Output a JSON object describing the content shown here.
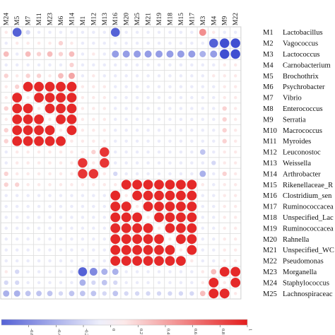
{
  "chart_data": {
    "type": "heatmap",
    "title": "",
    "columns": [
      "M24",
      "M5",
      "M7",
      "M11",
      "M23",
      "M6",
      "M14",
      "M1",
      "M12",
      "M13",
      "M16",
      "M20",
      "M25",
      "M21",
      "M19",
      "M18",
      "M15",
      "M17",
      "M3",
      "M4",
      "M9",
      "M22"
    ],
    "rows": [
      {
        "id": "M1",
        "label": "Lactobacillus"
      },
      {
        "id": "M2",
        "label": "Vagococcus"
      },
      {
        "id": "M3",
        "label": "Lactococcus"
      },
      {
        "id": "M4",
        "label": "Carnobacterium"
      },
      {
        "id": "M5",
        "label": "Brochothrix"
      },
      {
        "id": "M6",
        "label": "Psychrobacter"
      },
      {
        "id": "M7",
        "label": "Vibrio"
      },
      {
        "id": "M8",
        "label": "Enterococcus"
      },
      {
        "id": "M9",
        "label": "Serratia"
      },
      {
        "id": "M10",
        "label": "Macrococcus"
      },
      {
        "id": "M11",
        "label": "Myroides"
      },
      {
        "id": "M12",
        "label": "Leuconostoc"
      },
      {
        "id": "M13",
        "label": "Weissella"
      },
      {
        "id": "M14",
        "label": "Arthrobacter"
      },
      {
        "id": "M15",
        "label": "Rikenellaceae_R"
      },
      {
        "id": "M16",
        "label": "Clostridium_sen"
      },
      {
        "id": "M17",
        "label": "Ruminococcacea"
      },
      {
        "id": "M18",
        "label": "Unspecified_Lac"
      },
      {
        "id": "M19",
        "label": "Ruminococcacea"
      },
      {
        "id": "M20",
        "label": "Rahnella"
      },
      {
        "id": "M21",
        "label": "Unspecified_WC"
      },
      {
        "id": "M22",
        "label": "Pseudomonas"
      },
      {
        "id": "M23",
        "label": "Morganella"
      },
      {
        "id": "M24",
        "label": "Staphylococcus"
      },
      {
        "id": "M25",
        "label": "Lachnospiraceac"
      }
    ],
    "values": [
      [
        0.1,
        -0.8,
        -0.2,
        -0.1,
        -0.1,
        -0.1,
        -0.1,
        -0.1,
        -0.1,
        -0.1,
        -0.8,
        -0.1,
        -0.1,
        -0.1,
        -0.1,
        -0.1,
        -0.1,
        -0.1,
        0.5,
        0.1,
        -0.1,
        -0.1
      ],
      [
        -0.1,
        0.1,
        0.1,
        0.1,
        0.1,
        0.2,
        0.1,
        -0.1,
        -0.1,
        -0.1,
        -0.1,
        -0.1,
        -0.1,
        -0.1,
        -0.1,
        -0.1,
        -0.1,
        -0.1,
        -0.1,
        -0.8,
        -0.9,
        -0.9
      ],
      [
        0.3,
        -0.1,
        0.3,
        0.2,
        0.3,
        0.2,
        0.3,
        -0.1,
        0.1,
        -0.1,
        -0.5,
        -0.5,
        -0.5,
        -0.5,
        -0.5,
        -0.5,
        -0.5,
        -0.5,
        -0.4,
        -0.5,
        -0.9,
        -0.9
      ],
      [
        -0.1,
        -0.1,
        -0.1,
        -0.1,
        -0.1,
        -0.1,
        0.2,
        -0.1,
        -0.1,
        -0.1,
        -0.1,
        -0.1,
        -0.1,
        -0.1,
        -0.1,
        -0.1,
        -0.1,
        -0.1,
        -0.1,
        -0.1,
        0.1,
        0.1
      ],
      [
        0.2,
        0.1,
        0.2,
        0.2,
        0.1,
        0.3,
        0.4,
        -0.1,
        0.1,
        -0.1,
        -0.1,
        -0.1,
        -0.1,
        -0.1,
        -0.1,
        -0.1,
        -0.1,
        -0.1,
        -0.1,
        0.1,
        0.1,
        0.1
      ],
      [
        0.1,
        0.2,
        0.95,
        0.95,
        0.95,
        0.95,
        0.95,
        0.1,
        0.1,
        0.1,
        -0.1,
        -0.1,
        -0.1,
        -0.1,
        -0.1,
        -0.1,
        -0.1,
        -0.1,
        -0.1,
        -0.1,
        0.1,
        0.1
      ],
      [
        0.1,
        0.95,
        0.1,
        0.95,
        0.95,
        0.95,
        0.95,
        0.1,
        0.1,
        0.1,
        -0.1,
        -0.1,
        -0.1,
        -0.1,
        -0.1,
        -0.1,
        -0.1,
        -0.1,
        -0.1,
        -0.1,
        0.1,
        0.1
      ],
      [
        0.2,
        0.95,
        0.95,
        0.1,
        0.95,
        0.95,
        0.95,
        0.1,
        0.1,
        0.1,
        -0.1,
        -0.1,
        -0.1,
        -0.1,
        -0.1,
        -0.1,
        -0.1,
        -0.1,
        -0.1,
        -0.1,
        0.2,
        0.1
      ],
      [
        0.1,
        0.95,
        0.95,
        0.95,
        0.1,
        0.95,
        0.95,
        0.1,
        0.1,
        0.1,
        -0.1,
        -0.1,
        -0.1,
        -0.1,
        -0.1,
        -0.1,
        -0.1,
        -0.1,
        -0.1,
        -0.1,
        0.2,
        0.1
      ],
      [
        0.2,
        0.95,
        0.95,
        0.95,
        0.95,
        0.1,
        0.95,
        0.1,
        0.1,
        0.1,
        -0.1,
        -0.1,
        -0.1,
        -0.1,
        -0.1,
        -0.1,
        -0.1,
        -0.1,
        -0.1,
        -0.1,
        0.2,
        0.1
      ],
      [
        0.2,
        0.95,
        0.95,
        0.95,
        0.95,
        0.95,
        0.1,
        0.1,
        0.1,
        0.1,
        -0.1,
        -0.1,
        -0.1,
        -0.1,
        -0.1,
        -0.1,
        -0.1,
        -0.1,
        -0.1,
        -0.1,
        0.2,
        0.1
      ],
      [
        -0.1,
        0.1,
        0.1,
        0.1,
        0.1,
        0.1,
        0.1,
        0.1,
        0.2,
        0.9,
        -0.1,
        -0.1,
        -0.1,
        -0.1,
        -0.1,
        -0.1,
        -0.1,
        -0.1,
        -0.3,
        -0.1,
        0.1,
        0.1
      ],
      [
        -0.1,
        0.1,
        0.1,
        0.1,
        0.1,
        0.1,
        0.1,
        0.9,
        0.1,
        0.9,
        -0.1,
        -0.1,
        -0.1,
        -0.1,
        -0.1,
        -0.1,
        -0.1,
        -0.1,
        -0.1,
        -0.2,
        0.1,
        0.1
      ],
      [
        0.2,
        0.1,
        0.1,
        0.1,
        0.1,
        0.1,
        0.1,
        0.9,
        0.9,
        0.1,
        -0.2,
        -0.1,
        -0.1,
        -0.1,
        -0.1,
        -0.1,
        -0.1,
        -0.1,
        -0.4,
        -0.1,
        0.2,
        0.1
      ],
      [
        0.2,
        0.2,
        0.1,
        0.1,
        0.1,
        0.1,
        0.1,
        0.1,
        0.1,
        0.1,
        0.1,
        0.95,
        0.95,
        0.95,
        0.95,
        0.95,
        0.95,
        0.95,
        0.1,
        -0.1,
        0.1,
        0.1
      ],
      [
        -0.1,
        -0.1,
        -0.1,
        -0.1,
        -0.1,
        -0.1,
        -0.1,
        -0.1,
        -0.1,
        -0.1,
        0.95,
        0.1,
        0.95,
        0.95,
        0.95,
        0.95,
        0.95,
        0.95,
        -0.1,
        -0.1,
        0.1,
        0.1
      ],
      [
        -0.1,
        -0.1,
        -0.1,
        -0.1,
        -0.1,
        -0.1,
        -0.1,
        -0.1,
        -0.1,
        -0.1,
        0.95,
        0.95,
        0.1,
        0.95,
        0.95,
        0.95,
        0.95,
        0.95,
        -0.1,
        -0.1,
        0.1,
        0.1
      ],
      [
        -0.1,
        -0.1,
        -0.1,
        -0.1,
        -0.1,
        -0.1,
        -0.1,
        -0.1,
        -0.1,
        -0.1,
        0.95,
        0.95,
        0.95,
        0.1,
        0.95,
        0.95,
        0.95,
        0.95,
        -0.1,
        -0.1,
        0.1,
        0.1
      ],
      [
        -0.1,
        -0.1,
        -0.1,
        -0.1,
        -0.1,
        -0.1,
        -0.1,
        -0.1,
        -0.1,
        -0.1,
        0.95,
        0.95,
        0.95,
        0.95,
        0.1,
        0.95,
        0.95,
        0.95,
        -0.1,
        -0.1,
        0.1,
        0.1
      ],
      [
        -0.1,
        -0.1,
        -0.1,
        -0.1,
        -0.1,
        -0.1,
        -0.1,
        -0.1,
        -0.1,
        -0.1,
        0.95,
        0.95,
        0.95,
        0.95,
        0.95,
        0.1,
        0.95,
        0.95,
        -0.1,
        -0.1,
        0.1,
        0.1
      ],
      [
        -0.1,
        -0.1,
        -0.1,
        -0.1,
        -0.1,
        -0.1,
        -0.1,
        -0.1,
        -0.1,
        -0.1,
        0.95,
        0.95,
        0.95,
        0.95,
        0.95,
        0.95,
        0.1,
        0.95,
        -0.1,
        -0.1,
        0.1,
        0.1
      ],
      [
        -0.1,
        -0.1,
        -0.1,
        -0.1,
        -0.1,
        -0.1,
        -0.1,
        -0.1,
        -0.1,
        -0.1,
        0.95,
        0.95,
        0.95,
        0.95,
        0.95,
        0.95,
        0.95,
        0.1,
        -0.1,
        -0.1,
        0.1,
        0.1
      ],
      [
        0.1,
        -0.2,
        -0.1,
        -0.1,
        -0.1,
        -0.1,
        -0.1,
        -0.8,
        -0.6,
        -0.4,
        -0.4,
        -0.1,
        -0.1,
        -0.1,
        -0.1,
        -0.1,
        -0.1,
        -0.1,
        0.1,
        0.3,
        0.95,
        0.95
      ],
      [
        -0.2,
        -0.2,
        -0.1,
        -0.1,
        -0.1,
        -0.1,
        -0.1,
        -0.4,
        -0.2,
        -0.3,
        -0.2,
        -0.1,
        -0.1,
        -0.1,
        -0.1,
        -0.1,
        -0.1,
        -0.1,
        0.1,
        0.95,
        0.1,
        0.95
      ],
      [
        -0.4,
        -0.4,
        -0.3,
        -0.3,
        -0.3,
        -0.2,
        -0.3,
        -0.3,
        -0.3,
        -0.2,
        -0.3,
        -0.2,
        -0.2,
        -0.2,
        -0.2,
        -0.2,
        -0.2,
        -0.2,
        0.3,
        0.95,
        0.95,
        0.1
      ]
    ],
    "colorbar": {
      "ticks": [
        "-0.6",
        "-0.4",
        "-0.2",
        "0",
        "0.2",
        "0.4",
        "0.6",
        "0.8",
        "1"
      ],
      "tick_values": [
        -0.6,
        -0.4,
        -0.2,
        0,
        0.2,
        0.4,
        0.6,
        0.8,
        1
      ],
      "range": [
        -0.8,
        1
      ],
      "negative_color": "#2b3bcc",
      "neutral_color": "#ffffff",
      "positive_color": "#e41e1e"
    },
    "grid": true,
    "legend_placement": "bottom"
  }
}
